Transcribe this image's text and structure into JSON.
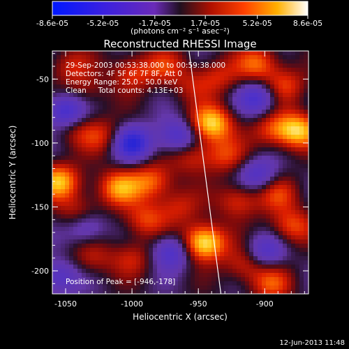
{
  "chart_data": {
    "type": "heatmap",
    "title": "Reconstructed RHESSI Image",
    "xlabel": "Heliocentric X (arcsec)",
    "ylabel": "Heliocentric Y (arcsec)",
    "xlim": [
      -1060,
      -867
    ],
    "ylim": [
      -218,
      -28
    ],
    "x_ticks": [
      -1050,
      -1000,
      -950,
      -900
    ],
    "x_tick_labels": [
      "-1050",
      "-1000",
      "-950",
      "-900"
    ],
    "y_ticks": [
      -200,
      -150,
      -100,
      -50
    ],
    "y_tick_labels": [
      "-200",
      "-150",
      "-100",
      "-50"
    ],
    "colorbar": {
      "ticks": [
        -8.6e-05,
        -5.2e-05,
        -1.7e-05,
        1.7e-05,
        5.2e-05,
        8.6e-05
      ],
      "tick_labels": [
        "-8.6e-05",
        "-5.2e-05",
        "-1.7e-05",
        "1.7e-05",
        "5.2e-05",
        "8.6e-05"
      ],
      "unit_label": "(photons cm⁻² s⁻¹ asec⁻²)",
      "range": [
        -8.6e-05,
        8.6e-05
      ]
    },
    "annotations": [
      "29-Sep-2003 00:53:38.000 to 00:59:38.000",
      "Detectors: 4F 5F 6F 7F 8F, Att 0",
      "Energy Range: 25.0 - 50.0 keV",
      "Clean     Total counts: 4.13E+03"
    ],
    "peak_label": "Position of Peak = [-946,-178]",
    "peak_position": [
      -946,
      -178
    ],
    "limb_line": {
      "x": [
        -957,
        -933
      ],
      "y": [
        -28,
        -218
      ]
    },
    "blobs": [
      {
        "x": -1047,
        "y": -40,
        "v": 0.35
      },
      {
        "x": -1035,
        "y": -60,
        "v": 0.25
      },
      {
        "x": -1000,
        "y": -45,
        "v": 0.45
      },
      {
        "x": -975,
        "y": -40,
        "v": 0.35
      },
      {
        "x": -955,
        "y": -55,
        "v": 0.25
      },
      {
        "x": -935,
        "y": -48,
        "v": 0.35
      },
      {
        "x": -905,
        "y": -38,
        "v": 0.55
      },
      {
        "x": -885,
        "y": -55,
        "v": 0.45
      },
      {
        "x": -1040,
        "y": -90,
        "v": 0.3
      },
      {
        "x": -1020,
        "y": -95,
        "v": 0.35
      },
      {
        "x": -1055,
        "y": -130,
        "v": 0.75
      },
      {
        "x": -1010,
        "y": -135,
        "v": 0.65
      },
      {
        "x": -985,
        "y": -130,
        "v": 0.55
      },
      {
        "x": -955,
        "y": -110,
        "v": 0.4
      },
      {
        "x": -940,
        "y": -85,
        "v": 0.85
      },
      {
        "x": -930,
        "y": -110,
        "v": 0.4
      },
      {
        "x": -895,
        "y": -90,
        "v": 0.4
      },
      {
        "x": -875,
        "y": -90,
        "v": 0.8
      },
      {
        "x": -1040,
        "y": -155,
        "v": 0.4
      },
      {
        "x": -990,
        "y": -160,
        "v": 0.45
      },
      {
        "x": -965,
        "y": -150,
        "v": 0.35
      },
      {
        "x": -920,
        "y": -145,
        "v": 0.45
      },
      {
        "x": -890,
        "y": -140,
        "v": 0.4
      },
      {
        "x": -880,
        "y": -165,
        "v": 0.5
      },
      {
        "x": -1030,
        "y": -190,
        "v": 0.3
      },
      {
        "x": -1000,
        "y": -190,
        "v": 0.35
      },
      {
        "x": -946,
        "y": -178,
        "v": 1.0
      },
      {
        "x": -915,
        "y": -195,
        "v": 0.4
      },
      {
        "x": -895,
        "y": -210,
        "v": 0.45
      }
    ],
    "cold_blobs": [
      {
        "x": -1050,
        "y": -75,
        "v": 0.7
      },
      {
        "x": -1000,
        "y": -100,
        "v": 0.8
      },
      {
        "x": -965,
        "y": -95,
        "v": 0.6
      },
      {
        "x": -905,
        "y": -65,
        "v": 0.6
      },
      {
        "x": -1035,
        "y": -165,
        "v": 0.5
      },
      {
        "x": -970,
        "y": -185,
        "v": 0.6
      },
      {
        "x": -905,
        "y": -125,
        "v": 0.5
      },
      {
        "x": -900,
        "y": -185,
        "v": 0.5
      },
      {
        "x": -1055,
        "y": -205,
        "v": 0.5
      }
    ]
  },
  "footer": {
    "date_stamp": "12-Jun-2013 11:48"
  }
}
